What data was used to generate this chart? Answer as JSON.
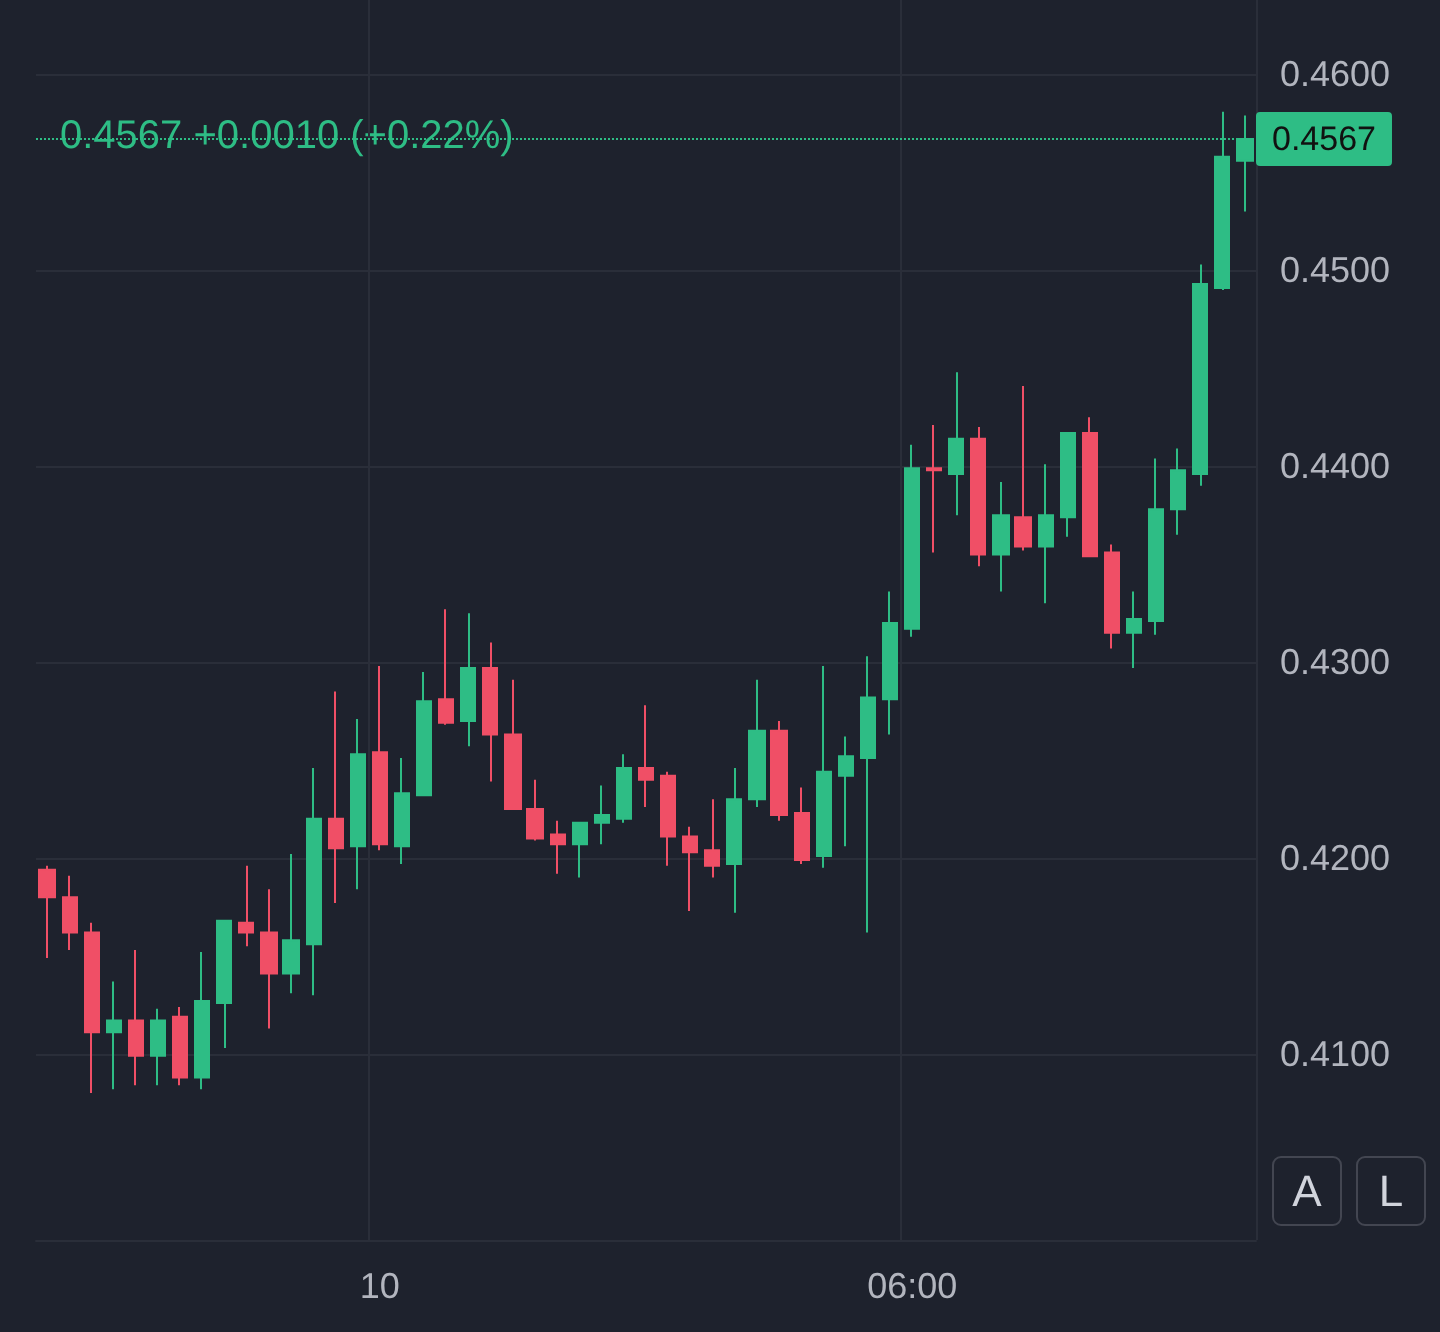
{
  "chart_data": {
    "type": "candlestick",
    "subtitle": "0.4567 +0.0010 (+0.22%)",
    "categories": [
      null,
      null,
      null,
      null,
      null,
      null,
      null,
      null,
      null,
      null,
      null,
      null,
      null,
      null,
      null,
      "10",
      null,
      null,
      null,
      null,
      null,
      null,
      null,
      null,
      null,
      null,
      null,
      null,
      null,
      null,
      null,
      null,
      null,
      null,
      null,
      null,
      null,
      null,
      null,
      "06:00",
      null,
      null,
      null,
      null,
      null,
      null,
      null,
      null,
      null,
      null,
      null,
      null,
      null,
      null,
      null
    ],
    "ohlc": [
      [
        0.4194,
        0.4196,
        0.4149,
        0.418
      ],
      [
        0.418,
        0.4191,
        0.4153,
        0.4162
      ],
      [
        0.4162,
        0.4167,
        0.408,
        0.4111
      ],
      [
        0.4111,
        0.4137,
        0.4082,
        0.4117
      ],
      [
        0.4117,
        0.4153,
        0.4084,
        0.4099
      ],
      [
        0.4099,
        0.4123,
        0.4084,
        0.4117
      ],
      [
        0.4119,
        0.4124,
        0.4084,
        0.4088
      ],
      [
        0.4088,
        0.4152,
        0.4082,
        0.4127
      ],
      [
        0.4126,
        0.4168,
        0.4103,
        0.4168
      ],
      [
        0.4167,
        0.4196,
        0.4155,
        0.4162
      ],
      [
        0.4162,
        0.4184,
        0.4113,
        0.4141
      ],
      [
        0.4141,
        0.4202,
        0.4131,
        0.4158
      ],
      [
        0.4156,
        0.4246,
        0.413,
        0.422
      ],
      [
        0.422,
        0.4285,
        0.4177,
        0.4205
      ],
      [
        0.4206,
        0.4271,
        0.4184,
        0.4253
      ],
      [
        0.4254,
        0.4298,
        0.4204,
        0.4207
      ],
      [
        0.4206,
        0.4251,
        0.4197,
        0.4233
      ],
      [
        0.4232,
        0.4295,
        0.4232,
        0.428
      ],
      [
        0.4281,
        0.4327,
        0.4268,
        0.4269
      ],
      [
        0.427,
        0.4325,
        0.4257,
        0.4297
      ],
      [
        0.4297,
        0.431,
        0.4239,
        0.4263
      ],
      [
        0.4263,
        0.4291,
        0.4225,
        0.4225
      ],
      [
        0.4225,
        0.424,
        0.4209,
        0.421
      ],
      [
        0.4212,
        0.4219,
        0.4192,
        0.4207
      ],
      [
        0.4207,
        0.4218,
        0.419,
        0.4218
      ],
      [
        0.4218,
        0.4237,
        0.4207,
        0.4222
      ],
      [
        0.422,
        0.4253,
        0.4218,
        0.4246
      ],
      [
        0.4246,
        0.4278,
        0.4226,
        0.424
      ],
      [
        0.4242,
        0.4244,
        0.4196,
        0.4211
      ],
      [
        0.4211,
        0.4216,
        0.4173,
        0.4203
      ],
      [
        0.4204,
        0.423,
        0.419,
        0.4196
      ],
      [
        0.4197,
        0.4246,
        0.4172,
        0.423
      ],
      [
        0.423,
        0.4291,
        0.4226,
        0.4265
      ],
      [
        0.4265,
        0.427,
        0.4219,
        0.4222
      ],
      [
        0.4223,
        0.4236,
        0.4197,
        0.4199
      ],
      [
        0.4201,
        0.4298,
        0.4195,
        0.4244
      ],
      [
        0.4242,
        0.4262,
        0.4206,
        0.4252
      ],
      [
        0.4251,
        0.4303,
        0.4162,
        0.4282
      ],
      [
        0.4281,
        0.4336,
        0.4263,
        0.432
      ],
      [
        0.4317,
        0.4411,
        0.4313,
        0.4399
      ],
      [
        0.4399,
        0.4421,
        0.4356,
        0.4398
      ],
      [
        0.4396,
        0.4448,
        0.4375,
        0.4414
      ],
      [
        0.4414,
        0.442,
        0.4349,
        0.4355
      ],
      [
        0.4355,
        0.4392,
        0.4336,
        0.4375
      ],
      [
        0.4374,
        0.4441,
        0.4357,
        0.4359
      ],
      [
        0.4359,
        0.4401,
        0.433,
        0.4375
      ],
      [
        0.4374,
        0.4417,
        0.4364,
        0.4417
      ],
      [
        0.4417,
        0.4425,
        0.4354,
        0.4354
      ],
      [
        0.4356,
        0.436,
        0.4307,
        0.4315
      ],
      [
        0.4315,
        0.4336,
        0.4297,
        0.4322
      ],
      [
        0.4321,
        0.4404,
        0.4314,
        0.4378
      ],
      [
        0.4378,
        0.4409,
        0.4365,
        0.4398
      ],
      [
        0.4396,
        0.4503,
        0.439,
        0.4493
      ],
      [
        0.4491,
        0.4581,
        0.449,
        0.4558
      ],
      [
        0.4556,
        0.4579,
        0.453,
        0.4567
      ]
    ],
    "colors": [
      "#f04f66",
      "#f04f66",
      "#f04f66",
      "#2ebd85",
      "#f04f66",
      "#2ebd85",
      "#f04f66",
      "#2ebd85",
      "#2ebd85",
      "#f04f66",
      "#f04f66",
      "#2ebd85",
      "#2ebd85",
      "#f04f66",
      "#2ebd85",
      "#f04f66",
      "#2ebd85",
      "#2ebd85",
      "#f04f66",
      "#2ebd85",
      "#f04f66",
      "#f04f66",
      "#f04f66",
      "#f04f66",
      "#2ebd85",
      "#2ebd85",
      "#2ebd85",
      "#f04f66",
      "#f04f66",
      "#f04f66",
      "#f04f66",
      "#2ebd85",
      "#2ebd85",
      "#f04f66",
      "#f04f66",
      "#2ebd85",
      "#2ebd85",
      "#2ebd85",
      "#2ebd85",
      "#2ebd85",
      "#f04f66",
      "#2ebd85",
      "#f04f66",
      "#2ebd85",
      "#f04f66",
      "#2ebd85",
      "#2ebd85",
      "#f04f66",
      "#f04f66",
      "#2ebd85",
      "#2ebd85",
      "#2ebd85",
      "#2ebd85",
      "#2ebd85",
      "#2ebd85"
    ],
    "ylim": [
      0.4005,
      0.4638
    ],
    "yticks": [
      {
        "value": 0.41,
        "label": "0.4100"
      },
      {
        "value": 0.42,
        "label": "0.4200"
      },
      {
        "value": 0.43,
        "label": "0.4300"
      },
      {
        "value": 0.44,
        "label": "0.4400"
      },
      {
        "value": 0.45,
        "label": "0.4500"
      },
      {
        "value": 0.46,
        "label": "0.4600"
      }
    ],
    "ref_lines": [
      {
        "axis": "y",
        "value": 0.4567,
        "label": "0.4567",
        "color": "#2ebd85",
        "line_style": "dotted"
      }
    ],
    "annotations": [
      "A",
      "L"
    ],
    "grid": true
  }
}
